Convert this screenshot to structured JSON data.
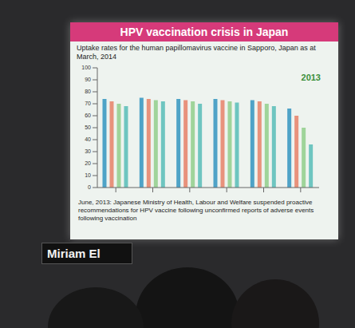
{
  "chart_data": {
    "type": "bar",
    "title": "HPV vaccination crisis in Japan",
    "subtitle": "Uptake rates for the human papillomavirus vaccine in Sapporo, Japan as at March, 2014",
    "annotations": [
      "2013",
      "June, 2013: Japanese Ministry of Health, Labour and Welfare suspended proactive recommendations for HPV vaccine following unconfirmed reports of adverse events following vaccination"
    ],
    "categories": [
      null,
      null,
      null,
      null,
      null,
      null
    ],
    "series": [
      {
        "color": "#4fa3c7",
        "values": [
          74,
          75,
          74,
          74,
          73,
          66
        ]
      },
      {
        "color": "#e8927c",
        "values": [
          72,
          74,
          73,
          73,
          72,
          60
        ]
      },
      {
        "color": "#9fd49a",
        "values": [
          70,
          73,
          72,
          72,
          70,
          50
        ]
      },
      {
        "color": "#6ec5c0",
        "values": [
          68,
          72,
          70,
          71,
          68,
          36
        ]
      }
    ],
    "ylim": [
      0,
      100
    ],
    "yticks": [
      0,
      10,
      20,
      30,
      40,
      50,
      60,
      70,
      80,
      90,
      100
    ],
    "grid": false
  },
  "name_card": "Miriam El"
}
